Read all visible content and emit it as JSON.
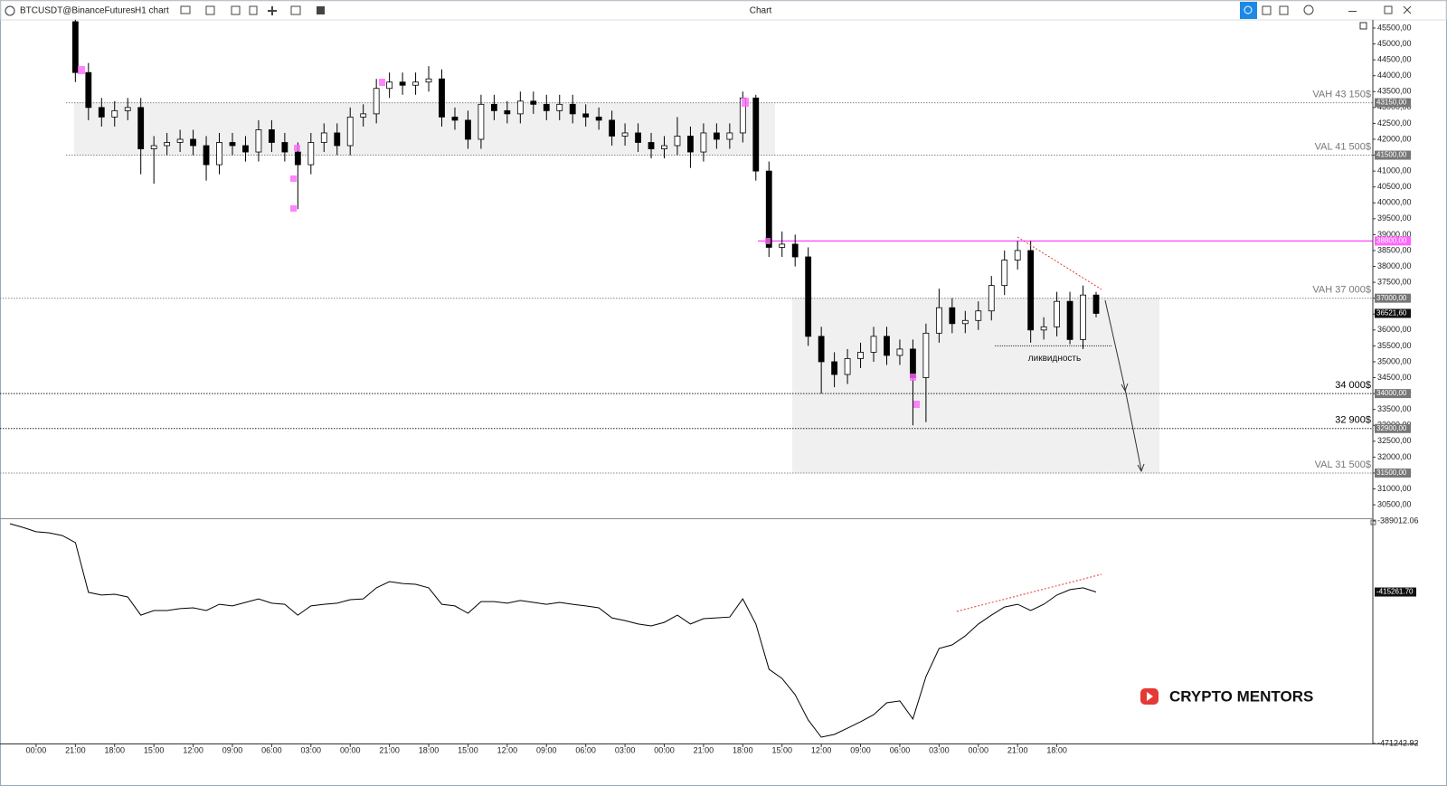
{
  "toolbar": {
    "symbol": "BTCUSDT@BinanceFutures",
    "interval": "H1 chart",
    "window_title": "Chart"
  },
  "watermark": "CRYPTO MENTORS",
  "chart_data": [
    {
      "type": "candlestick",
      "categories": [
        null,
        null,
        "00:00",
        null,
        null,
        "21:00",
        null,
        null,
        "18:00",
        null,
        null,
        "15:00",
        null,
        null,
        "12:00",
        null,
        null,
        "09:00",
        null,
        null,
        "06:00",
        null,
        null,
        "03:00",
        null,
        null,
        "00:00",
        null,
        null,
        "21:00",
        null,
        null,
        "18:00",
        null,
        null,
        "15:00",
        null,
        null,
        "12:00",
        null,
        null,
        "09:00",
        null,
        null,
        "06:00",
        null,
        null,
        "03:00",
        null,
        null,
        "00:00",
        null,
        null,
        "21:00",
        null,
        null,
        "18:00",
        null,
        null,
        "15:00",
        null,
        null,
        "12:00",
        null,
        null,
        "09:00",
        null,
        null,
        "06:00",
        null,
        null,
        "03:00",
        null,
        null,
        "00:00",
        null,
        null,
        "21:00",
        null,
        null,
        "18:00",
        null,
        null,
        null
      ],
      "open": [
        null,
        null,
        null,
        null,
        null,
        45700,
        44100,
        43000,
        42700,
        42900,
        43000,
        41700,
        41800,
        41900,
        42000,
        41800,
        41200,
        41900,
        41800,
        41600,
        42300,
        41900,
        41600,
        41200,
        41900,
        42200,
        41800,
        42700,
        42800,
        43600,
        43800,
        43700,
        43800,
        43900,
        42700,
        42600,
        42000,
        43100,
        42900,
        42800,
        43200,
        43100,
        42900,
        43100,
        42800,
        42700,
        42600,
        42100,
        42200,
        41900,
        41700,
        41800,
        42100,
        41600,
        42200,
        42000,
        42200,
        43300,
        41000,
        38600,
        38700,
        38300,
        35800,
        35000,
        34600,
        35100,
        35300,
        35800,
        35200,
        35400,
        34500,
        35900,
        36700,
        36200,
        36300,
        36600,
        37400,
        38200,
        38500,
        36000,
        36100,
        36900,
        35700,
        37100
      ],
      "high": [
        null,
        null,
        null,
        null,
        null,
        45760,
        44400,
        43300,
        43200,
        43300,
        43300,
        42100,
        42200,
        42300,
        42300,
        42100,
        42200,
        42200,
        42100,
        42600,
        42600,
        42200,
        41900,
        42200,
        42500,
        42500,
        43000,
        43100,
        43900,
        44100,
        44100,
        44100,
        44300,
        44200,
        43000,
        42900,
        43400,
        43400,
        43200,
        43500,
        43500,
        43400,
        43400,
        43400,
        43100,
        43000,
        42900,
        42500,
        42500,
        42200,
        42100,
        42700,
        42400,
        42500,
        42500,
        42500,
        43500,
        43400,
        41300,
        39100,
        39000,
        38600,
        36100,
        35300,
        35400,
        35600,
        36100,
        36100,
        35700,
        35700,
        36200,
        37300,
        37000,
        36600,
        36900,
        37700,
        38500,
        38800,
        38800,
        36400,
        37200,
        37200,
        37400,
        37200
      ],
      "low": [
        null,
        null,
        null,
        null,
        null,
        43800,
        42600,
        42400,
        42400,
        42600,
        40900,
        40600,
        41500,
        41600,
        41500,
        40700,
        40900,
        41500,
        41300,
        41300,
        41600,
        41300,
        39800,
        40900,
        41600,
        41500,
        41500,
        42400,
        42500,
        43300,
        43400,
        43400,
        43500,
        42400,
        42300,
        41700,
        41700,
        42600,
        42500,
        42500,
        42800,
        42600,
        42600,
        42500,
        42400,
        42300,
        41800,
        41800,
        41600,
        41400,
        41400,
        41500,
        41100,
        41300,
        41700,
        41700,
        41900,
        40700,
        38300,
        38300,
        38000,
        35500,
        34000,
        34200,
        34300,
        34800,
        35000,
        34900,
        34900,
        33000,
        33100,
        35600,
        35900,
        35900,
        36000,
        36300,
        37100,
        37900,
        35600,
        35700,
        35800,
        35550,
        35400,
        36400
      ],
      "close": [
        null,
        null,
        null,
        null,
        null,
        44100,
        43000,
        42700,
        42900,
        43000,
        41700,
        41800,
        41900,
        42000,
        41800,
        41200,
        41900,
        41800,
        41600,
        42300,
        41900,
        41600,
        41200,
        41900,
        42200,
        41800,
        42700,
        42800,
        43600,
        43800,
        43700,
        43800,
        43900,
        42700,
        42600,
        42000,
        43100,
        42900,
        42800,
        43200,
        43100,
        42900,
        43100,
        42800,
        42700,
        42600,
        42100,
        42200,
        41900,
        41700,
        41800,
        42100,
        41600,
        42200,
        42000,
        42200,
        43300,
        41000,
        38600,
        38700,
        38300,
        35800,
        35000,
        34600,
        35100,
        35300,
        35800,
        35200,
        35400,
        34500,
        35900,
        36700,
        36200,
        36300,
        36600,
        37400,
        38200,
        38500,
        36000,
        36100,
        36900,
        35700,
        37100,
        36521.6
      ],
      "up_color": "#ffffff",
      "down_color": "#000000",
      "wick_color": "#000000",
      "ylim": [
        30076,
        45756
      ],
      "yticks": [
        {
          "value": 30500,
          "label": "30500,00"
        },
        {
          "value": 31000,
          "label": "31000,00"
        },
        {
          "value": 31500,
          "label": "31500,00"
        },
        {
          "value": 32000,
          "label": "32000,00"
        },
        {
          "value": 32500,
          "label": "32500,00"
        },
        {
          "value": 33000,
          "label": "33000,00"
        },
        {
          "value": 33500,
          "label": "33500,00"
        },
        {
          "value": 34000,
          "label": "34000,00"
        },
        {
          "value": 34500,
          "label": "34500,00"
        },
        {
          "value": 35000,
          "label": "35000,00"
        },
        {
          "value": 35500,
          "label": "35500,00"
        },
        {
          "value": 36000,
          "label": "36000,00"
        },
        {
          "value": 36500,
          "label": "36500,00"
        },
        {
          "value": 37000,
          "label": "37000,00"
        },
        {
          "value": 37500,
          "label": "37500,00"
        },
        {
          "value": 38000,
          "label": "38000,00"
        },
        {
          "value": 38500,
          "label": "38500,00"
        },
        {
          "value": 39000,
          "label": "39000,00"
        },
        {
          "value": 39500,
          "label": "39500,00"
        },
        {
          "value": 40000,
          "label": "40000,00"
        },
        {
          "value": 40500,
          "label": "40500,00"
        },
        {
          "value": 41000,
          "label": "41000,00"
        },
        {
          "value": 41500,
          "label": "41500,00"
        },
        {
          "value": 42000,
          "label": "42000,00"
        },
        {
          "value": 42500,
          "label": "42500,00"
        },
        {
          "value": 43000,
          "label": "43000,00"
        },
        {
          "value": 43500,
          "label": "43500,00"
        },
        {
          "value": 44000,
          "label": "44000,00"
        },
        {
          "value": 44500,
          "label": "44500,00"
        },
        {
          "value": 45000,
          "label": "45000,00"
        },
        {
          "value": 45500,
          "label": "45500,00"
        }
      ],
      "levels": [
        {
          "value": 43150,
          "text": "VAH 43 150$",
          "tag": "43150,00",
          "color": "#888888"
        },
        {
          "value": 41500,
          "text": "VAL 41 500$",
          "tag": "41500,00",
          "color": "#888888"
        },
        {
          "value": 38800,
          "tag": "38800,00",
          "color": "#ff33ff"
        },
        {
          "value": 37000,
          "text": "VAH 37 000$",
          "tag": "37000,00",
          "color": "#888888"
        },
        {
          "value": 34000,
          "text": "34 000$",
          "tag": "34000,00",
          "color": "#222222"
        },
        {
          "value": 32900,
          "text": "32 900$",
          "tag": "32900,00",
          "color": "#222222"
        },
        {
          "value": 31500,
          "text": "VAL 31 500$",
          "tag": "31500,00",
          "color": "#888888"
        }
      ],
      "last_price": {
        "value": 36521.6,
        "label": "36521,60"
      },
      "annotation": {
        "text": "ликвидность",
        "value": 35500
      }
    },
    {
      "type": "line",
      "values": [
        -390000,
        -391400,
        -393000,
        -393400,
        -394400,
        -397000,
        -415400,
        -416400,
        -416100,
        -417100,
        -423800,
        -422100,
        -422100,
        -421400,
        -421100,
        -422100,
        -419800,
        -420400,
        -419100,
        -417800,
        -419400,
        -419800,
        -423800,
        -420400,
        -419800,
        -419400,
        -418100,
        -417800,
        -413700,
        -411400,
        -412100,
        -412400,
        -413700,
        -419800,
        -420400,
        -423100,
        -418800,
        -418800,
        -419400,
        -418400,
        -419100,
        -419800,
        -419100,
        -419800,
        -420400,
        -421100,
        -424800,
        -425800,
        -427100,
        -427800,
        -426500,
        -423800,
        -427100,
        -425100,
        -424800,
        -424500,
        -417800,
        -427100,
        -443800,
        -447200,
        -453200,
        -462600,
        -468900,
        -467900,
        -465600,
        -463200,
        -460600,
        -456200,
        -455500,
        -462200,
        -446500,
        -436100,
        -434800,
        -431500,
        -427100,
        -423800,
        -420800,
        -419800,
        -422100,
        -419800,
        -416400,
        -414400,
        -413700,
        -415261.7
      ],
      "color": "#000000",
      "ylim": [
        -471242.92,
        -389012.06
      ],
      "yticks": [
        {
          "value": -389012.06,
          "label": "-389012.06"
        },
        {
          "value": -471242.92,
          "label": "-471242.92"
        }
      ],
      "last_value": {
        "value": -415261.7,
        "label": "-415261.70"
      }
    }
  ]
}
